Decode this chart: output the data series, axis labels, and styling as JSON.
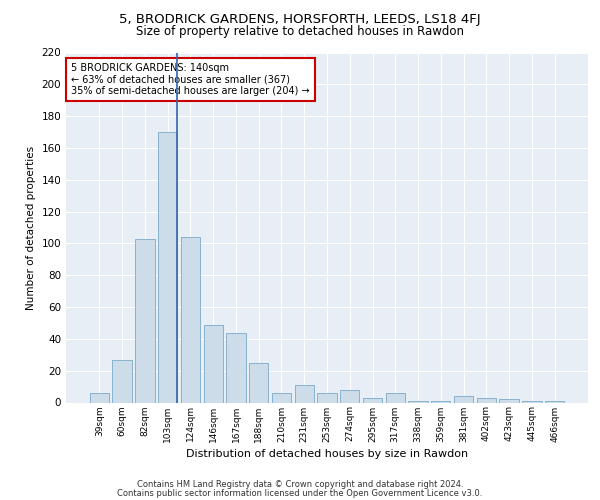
{
  "title1": "5, BRODRICK GARDENS, HORSFORTH, LEEDS, LS18 4FJ",
  "title2": "Size of property relative to detached houses in Rawdon",
  "xlabel": "Distribution of detached houses by size in Rawdon",
  "ylabel": "Number of detached properties",
  "bar_labels": [
    "39sqm",
    "60sqm",
    "82sqm",
    "103sqm",
    "124sqm",
    "146sqm",
    "167sqm",
    "188sqm",
    "210sqm",
    "231sqm",
    "253sqm",
    "274sqm",
    "295sqm",
    "317sqm",
    "338sqm",
    "359sqm",
    "381sqm",
    "402sqm",
    "423sqm",
    "445sqm",
    "466sqm"
  ],
  "bar_heights": [
    6,
    27,
    103,
    170,
    104,
    49,
    44,
    25,
    6,
    11,
    6,
    8,
    3,
    6,
    1,
    1,
    4,
    3,
    2,
    1,
    1
  ],
  "bar_color": "#ccdce8",
  "bar_edge_color": "#7aaac8",
  "highlight_line_color": "#3366aa",
  "annotation_text": "5 BRODRICK GARDENS: 140sqm\n← 63% of detached houses are smaller (367)\n35% of semi-detached houses are larger (204) →",
  "annotation_box_color": "#ffffff",
  "annotation_box_edge": "#cc0000",
  "ylim": [
    0,
    220
  ],
  "yticks": [
    0,
    20,
    40,
    60,
    80,
    100,
    120,
    140,
    160,
    180,
    200,
    220
  ],
  "background_color": "#e8eef5",
  "grid_color": "#ffffff",
  "footer1": "Contains HM Land Registry data © Crown copyright and database right 2024.",
  "footer2": "Contains public sector information licensed under the Open Government Licence v3.0."
}
